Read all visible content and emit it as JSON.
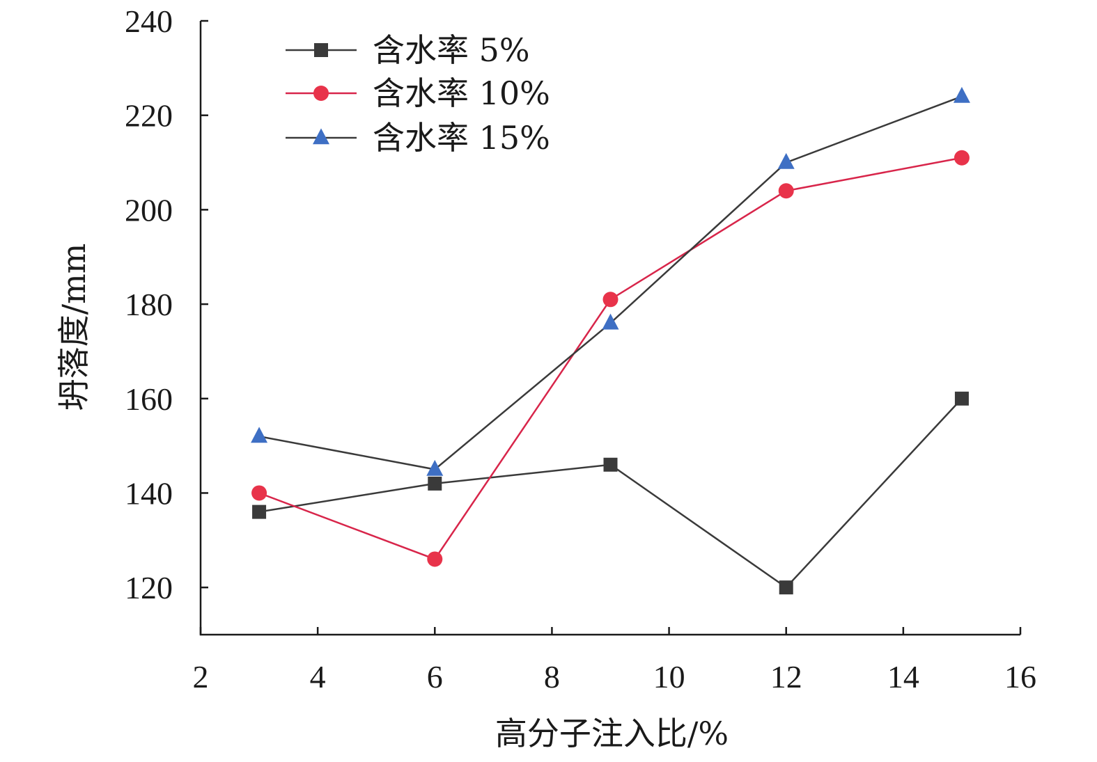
{
  "chart_data": {
    "type": "line",
    "title": "",
    "xlabel": "高分子注入比/%",
    "ylabel": "坍落度/mm",
    "xlim": [
      2,
      16
    ],
    "ylim": [
      110,
      240
    ],
    "x_ticks": [
      2,
      4,
      6,
      8,
      10,
      12,
      14,
      16
    ],
    "y_ticks": [
      120,
      140,
      160,
      180,
      200,
      220,
      240
    ],
    "x_tick_labels": [
      "2",
      "4",
      "6",
      "8",
      "10",
      "12",
      "14",
      "16"
    ],
    "y_tick_labels": [
      "120",
      "140",
      "160",
      "180",
      "200",
      "220",
      "240"
    ],
    "grid": false,
    "legend_position": "top-left",
    "x": [
      3,
      6,
      9,
      12,
      15
    ],
    "series": [
      {
        "name": "含水率 5%",
        "marker": "square",
        "color": "#3a3a3a",
        "line_color": "#3a3a3a",
        "values": [
          136,
          142,
          146,
          120,
          160
        ]
      },
      {
        "name": "含水率 10%",
        "marker": "circle",
        "color": "#e8334a",
        "line_color": "#d8254a",
        "values": [
          140,
          126,
          181,
          204,
          211
        ]
      },
      {
        "name": "含水率 15%",
        "marker": "triangle",
        "color": "#3e6fc4",
        "line_color": "#3a3a3a",
        "values": [
          152,
          145,
          176,
          210,
          224
        ]
      }
    ]
  }
}
